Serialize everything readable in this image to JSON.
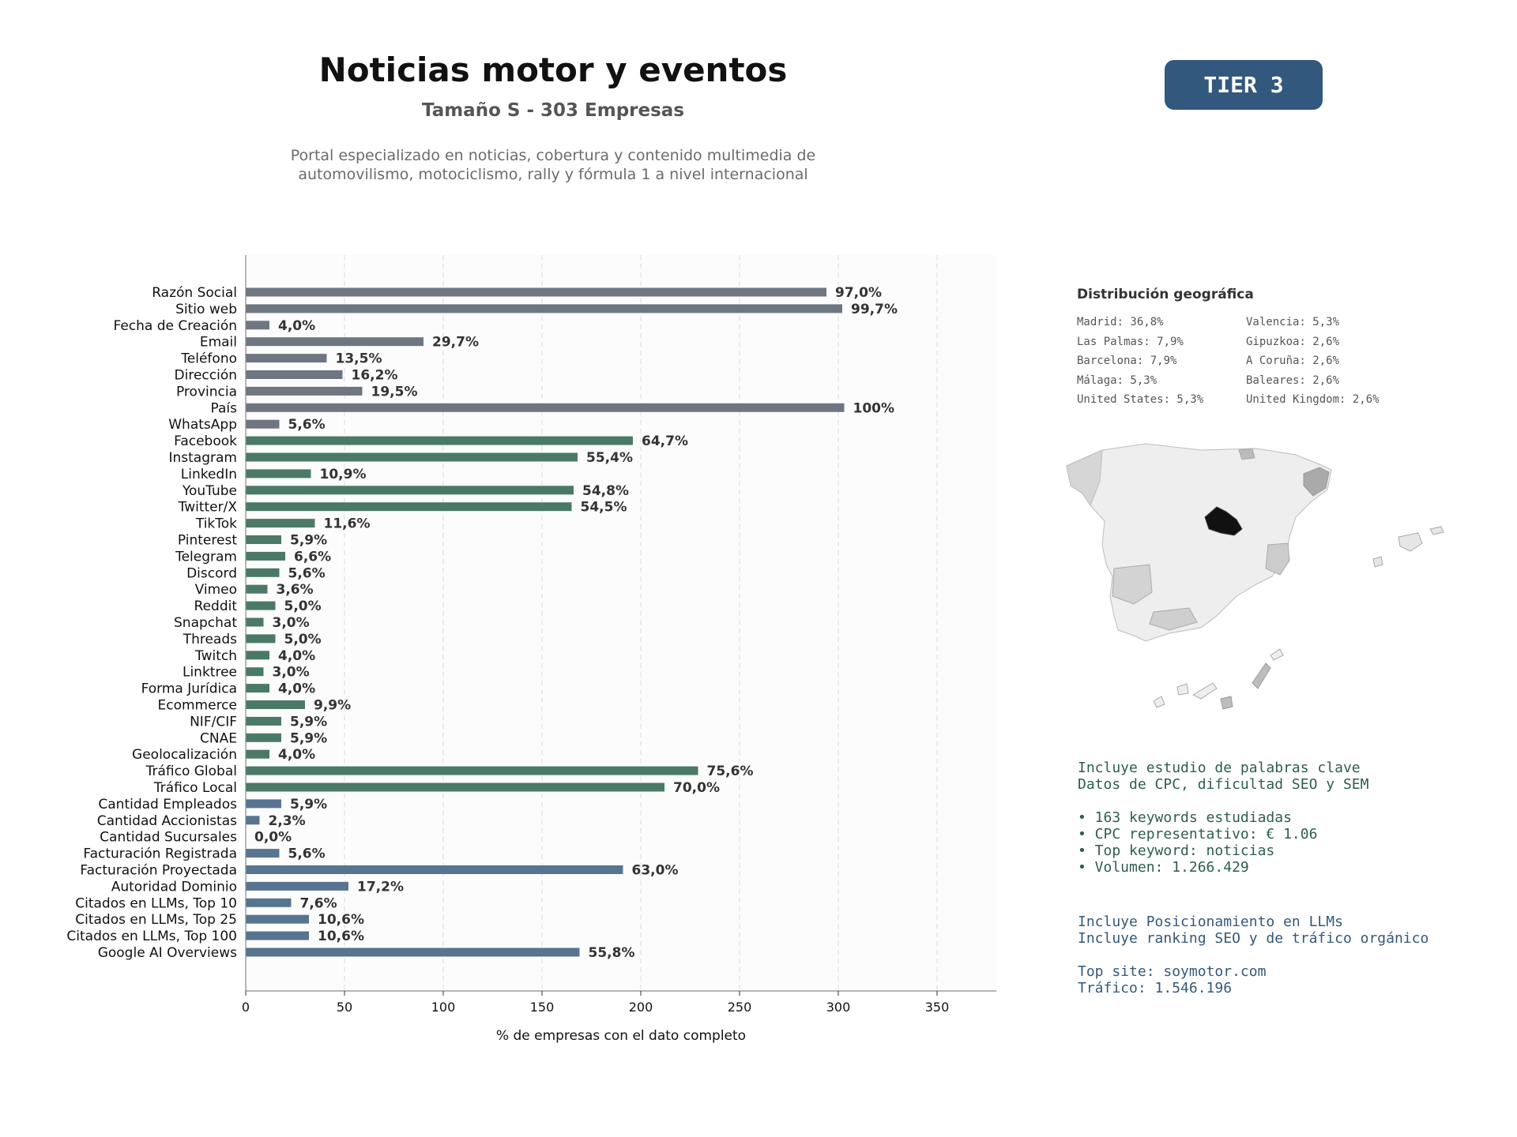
{
  "header": {
    "title": "Noticias motor y eventos",
    "subtitle": "Tamaño S - 303 Empresas",
    "desc_line1": "Portal especializado en noticias, cobertura y contenido multimedia de",
    "desc_line2": "automovilismo, motociclismo, rally y fórmula 1 a nivel internacional",
    "tier": "TIER 3"
  },
  "chart_data": {
    "type": "bar",
    "orientation": "horizontal",
    "xlabel": "% de empresas con el dato completo",
    "xlim": [
      0,
      380
    ],
    "xticks": [
      0,
      50,
      100,
      150,
      200,
      250,
      300,
      350
    ],
    "grid": "vertical dashed",
    "categories": [
      "Razón Social",
      "Sitio web",
      "Fecha de Creación",
      "Email",
      "Teléfono",
      "Dirección",
      "Provincia",
      "País",
      "WhatsApp",
      "Facebook",
      "Instagram",
      "LinkedIn",
      "YouTube",
      "Twitter/X",
      "TikTok",
      "Pinterest",
      "Telegram",
      "Discord",
      "Vimeo",
      "Reddit",
      "Snapchat",
      "Threads",
      "Twitch",
      "Linktree",
      "Forma Jurídica",
      "Ecommerce",
      "NIF/CIF",
      "CNAE",
      "Geolocalización",
      "Tráfico Global",
      "Tráfico Local",
      "Cantidad Empleados",
      "Cantidad Accionistas",
      "Cantidad Sucursales",
      "Facturación Registrada",
      "Facturación Proyectada",
      "Autoridad Dominio",
      "Citados en LLMs, Top 10",
      "Citados en LLMs, Top 25",
      "Citados en LLMs, Top 100",
      "Google AI Overviews"
    ],
    "values": [
      294,
      302,
      12,
      90,
      41,
      49,
      59,
      303,
      17,
      196,
      168,
      33,
      166,
      165,
      35,
      18,
      20,
      17,
      11,
      15,
      9,
      15,
      12,
      9,
      12,
      30,
      18,
      18,
      12,
      229,
      212,
      18,
      7,
      0,
      17,
      191,
      52,
      23,
      32,
      32,
      169
    ],
    "labels": [
      "97,0%",
      "99,7%",
      "4,0%",
      "29,7%",
      "13,5%",
      "16,2%",
      "19,5%",
      "100%",
      "5,6%",
      "64,7%",
      "55,4%",
      "10,9%",
      "54,8%",
      "54,5%",
      "11,6%",
      "5,9%",
      "6,6%",
      "5,6%",
      "3,6%",
      "5,0%",
      "3,0%",
      "5,0%",
      "4,0%",
      "3,0%",
      "4,0%",
      "9,9%",
      "5,9%",
      "5,9%",
      "4,0%",
      "75,6%",
      "70,0%",
      "5,9%",
      "2,3%",
      "0,0%",
      "5,6%",
      "63,0%",
      "17,2%",
      "7,6%",
      "10,6%",
      "10,6%",
      "55,8%"
    ],
    "groups": [
      "gray",
      "gray",
      "gray",
      "gray",
      "gray",
      "gray",
      "gray",
      "gray",
      "gray",
      "green",
      "green",
      "green",
      "green",
      "green",
      "green",
      "green",
      "green",
      "green",
      "green",
      "green",
      "green",
      "green",
      "green",
      "green",
      "green",
      "green",
      "green",
      "green",
      "green",
      "green",
      "green",
      "blue",
      "blue",
      "blue",
      "blue",
      "blue",
      "blue",
      "blue",
      "blue",
      "blue",
      "blue"
    ],
    "colors": {
      "gray": "#6e7681",
      "green": "#4a7a66",
      "blue": "#577590"
    }
  },
  "geo": {
    "title": "Distribución geográfica",
    "items": [
      "Madrid: 36,8%",
      "Valencia: 5,3%",
      "Las Palmas: 7,9%",
      "Gipuzkoa: 2,6%",
      "Barcelona: 7,9%",
      "A Coruña: 2,6%",
      "Málaga: 5,3%",
      "Baleares: 2,6%",
      "United States: 5,3%",
      "United Kingdom: 2,6%"
    ]
  },
  "keywords": {
    "line1": "Incluye estudio de palabras clave",
    "line2": "Datos de CPC, dificultad SEO y SEM",
    "bullets": [
      "• 163 keywords estudiadas",
      "• CPC representativo: € 1.06",
      "• Top keyword: noticias",
      "• Volumen: 1.266.429"
    ]
  },
  "llm": {
    "line1": "Incluye Posicionamiento en LLMs",
    "line2": "Incluye ranking SEO y de tráfico orgánico",
    "top_site": "Top site: soymotor.com",
    "traffic": "Tráfico: 1.546.196"
  }
}
